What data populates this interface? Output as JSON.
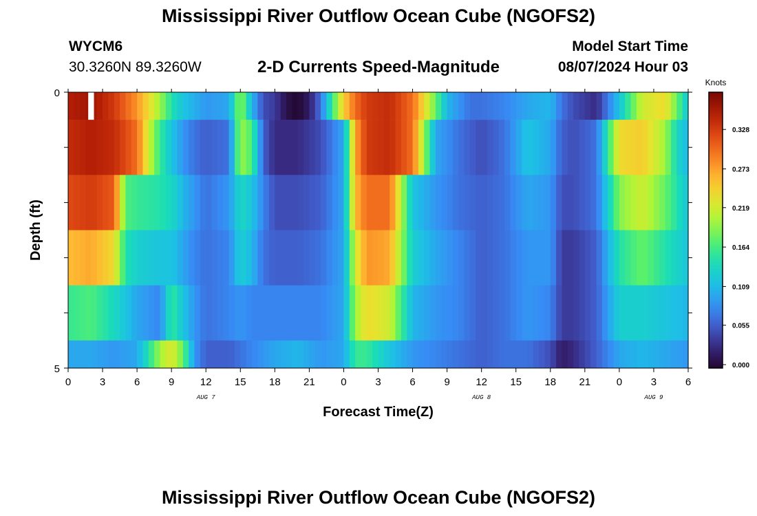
{
  "title": "Mississippi River Outflow Ocean Cube (NGOFS2)",
  "station": {
    "name": "WYCM6",
    "coords": "30.3260N  89.3260W"
  },
  "subtitle": "2-D Currents Speed-Magnitude",
  "model_start": {
    "label": "Model Start Time",
    "value": "08/07/2024 Hour 03"
  },
  "colors": {
    "accent": "#000000"
  },
  "chart_data": {
    "type": "heatmap",
    "title": "2-D Currents Speed-Magnitude",
    "xlabel": "Forecast Time(Z)",
    "ylabel": "Depth (ft)",
    "x_tick_labels": [
      "0",
      "3",
      "6",
      "9",
      "12",
      "15",
      "18",
      "21",
      "0",
      "3",
      "6",
      "9",
      "12",
      "15",
      "18",
      "21",
      "0",
      "3",
      "6"
    ],
    "x_date_labels": [
      {
        "text": "AUG 7",
        "at_hour": 12
      },
      {
        "text": "AUG 8",
        "at_hour": 36
      },
      {
        "text": "AUG 9",
        "at_hour": 51
      }
    ],
    "xlim_hours": [
      0,
      54
    ],
    "y_tick_labels": [
      "0",
      "5"
    ],
    "ylim": [
      0,
      5
    ],
    "colorbar": {
      "unit": "Knots",
      "ticks": [
        0.0,
        0.055,
        0.109,
        0.164,
        0.219,
        0.273,
        0.328
      ],
      "tick_labels": [
        "0.000",
        "0.055",
        "0.109",
        "0.164",
        "0.219",
        "0.273",
        "0.328"
      ],
      "range": [
        0,
        0.38
      ]
    },
    "legend": "right",
    "grid": false,
    "layers": [
      {
        "depth_range": [
          0,
          0.5
        ],
        "key_hours": [
          0,
          2,
          4,
          6,
          8,
          9,
          10,
          12,
          14,
          15,
          16,
          17,
          18,
          19,
          20,
          21,
          22,
          23,
          24,
          25,
          26,
          28,
          30,
          32,
          33,
          35,
          36,
          38,
          40,
          42,
          43,
          44,
          45,
          46,
          48,
          50,
          52,
          53,
          54
        ],
        "values": [
          0.35,
          0.36,
          0.33,
          0.28,
          0.2,
          0.15,
          0.12,
          0.09,
          0.1,
          0.2,
          0.11,
          0.05,
          0.04,
          0.01,
          0.0,
          0.02,
          0.07,
          0.16,
          0.25,
          0.3,
          0.33,
          0.34,
          0.3,
          0.18,
          0.11,
          0.07,
          0.07,
          0.08,
          0.1,
          0.11,
          0.07,
          0.05,
          0.04,
          0.03,
          0.12,
          0.22,
          0.24,
          0.18,
          0.12
        ]
      },
      {
        "depth_range": [
          0.5,
          1.5
        ],
        "key_hours": [
          0,
          2,
          4,
          6,
          7,
          8,
          9,
          10,
          11,
          12,
          14,
          15,
          16,
          17,
          18,
          20,
          22,
          24,
          25,
          26,
          28,
          30,
          32,
          34,
          36,
          38,
          40,
          42,
          43,
          44,
          46,
          48,
          50,
          52,
          53,
          54
        ],
        "values": [
          0.34,
          0.35,
          0.34,
          0.3,
          0.22,
          0.16,
          0.12,
          0.09,
          0.07,
          0.06,
          0.07,
          0.2,
          0.17,
          0.06,
          0.03,
          0.03,
          0.05,
          0.1,
          0.27,
          0.33,
          0.34,
          0.3,
          0.1,
          0.07,
          0.05,
          0.07,
          0.12,
          0.1,
          0.06,
          0.05,
          0.07,
          0.24,
          0.25,
          0.2,
          0.14,
          0.11
        ]
      },
      {
        "depth_range": [
          1.5,
          2.5
        ],
        "key_hours": [
          0,
          2,
          4,
          5,
          6,
          8,
          9,
          10,
          11,
          12,
          14,
          15,
          16,
          17,
          18,
          20,
          22,
          24,
          25,
          26,
          28,
          30,
          32,
          34,
          36,
          38,
          40,
          42,
          43,
          44,
          46,
          48,
          50,
          52,
          54
        ],
        "values": [
          0.32,
          0.33,
          0.31,
          0.17,
          0.16,
          0.15,
          0.14,
          0.11,
          0.09,
          0.07,
          0.09,
          0.14,
          0.12,
          0.08,
          0.05,
          0.05,
          0.06,
          0.1,
          0.26,
          0.3,
          0.3,
          0.12,
          0.09,
          0.07,
          0.06,
          0.07,
          0.1,
          0.09,
          0.05,
          0.05,
          0.07,
          0.19,
          0.22,
          0.18,
          0.12
        ]
      },
      {
        "depth_range": [
          2.5,
          3.5
        ],
        "key_hours": [
          0,
          2,
          4,
          5,
          6,
          8,
          9,
          10,
          11,
          12,
          14,
          15,
          16,
          17,
          18,
          20,
          22,
          24,
          25,
          26,
          28,
          30,
          32,
          34,
          36,
          38,
          40,
          42,
          43,
          44,
          46,
          48,
          50,
          52,
          54
        ],
        "values": [
          0.26,
          0.27,
          0.24,
          0.15,
          0.13,
          0.12,
          0.12,
          0.1,
          0.08,
          0.07,
          0.08,
          0.13,
          0.11,
          0.07,
          0.06,
          0.06,
          0.07,
          0.1,
          0.22,
          0.28,
          0.27,
          0.13,
          0.1,
          0.08,
          0.06,
          0.07,
          0.09,
          0.09,
          0.04,
          0.04,
          0.06,
          0.15,
          0.18,
          0.15,
          0.12
        ]
      },
      {
        "depth_range": [
          3.5,
          4.5
        ],
        "key_hours": [
          0,
          2,
          4,
          6,
          8,
          9,
          10,
          11,
          12,
          14,
          15,
          16,
          17,
          18,
          20,
          22,
          24,
          25,
          26,
          28,
          30,
          32,
          34,
          36,
          38,
          40,
          42,
          43,
          44,
          46,
          48,
          50,
          52,
          54
        ],
        "values": [
          0.16,
          0.17,
          0.14,
          0.1,
          0.08,
          0.16,
          0.12,
          0.09,
          0.07,
          0.08,
          0.09,
          0.08,
          0.08,
          0.08,
          0.08,
          0.08,
          0.1,
          0.2,
          0.24,
          0.22,
          0.11,
          0.09,
          0.08,
          0.06,
          0.07,
          0.09,
          0.08,
          0.04,
          0.04,
          0.06,
          0.13,
          0.13,
          0.12,
          0.11
        ]
      },
      {
        "depth_range": [
          4.5,
          5.0
        ],
        "key_hours": [
          0,
          2,
          4,
          6,
          7,
          8,
          9,
          10,
          11,
          12,
          14,
          16,
          18,
          20,
          22,
          24,
          25,
          26,
          28,
          30,
          32,
          34,
          36,
          38,
          40,
          42,
          43,
          44,
          46,
          48,
          50,
          52,
          54
        ],
        "values": [
          0.1,
          0.1,
          0.09,
          0.1,
          0.15,
          0.2,
          0.23,
          0.18,
          0.09,
          0.06,
          0.06,
          0.08,
          0.1,
          0.11,
          0.09,
          0.1,
          0.16,
          0.16,
          0.12,
          0.09,
          0.08,
          0.07,
          0.06,
          0.07,
          0.07,
          0.05,
          0.02,
          0.03,
          0.06,
          0.1,
          0.11,
          0.1,
          0.09
        ]
      }
    ]
  }
}
